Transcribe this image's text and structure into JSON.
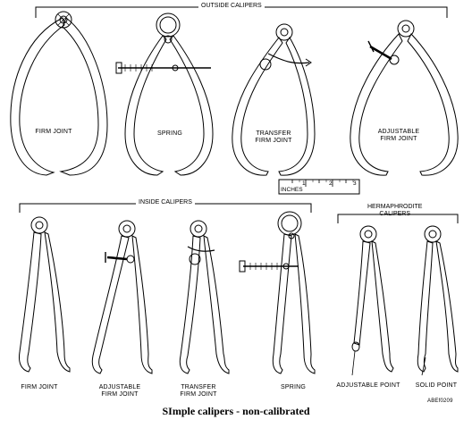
{
  "groups": {
    "outside": "OUTSIDE CALIPERS",
    "inside": "INSIDE CALIPERS",
    "hermaphrodite": "HERMAPHRODITE\nCALIPERS"
  },
  "outside_items": [
    "FIRM JOINT",
    "SPRING",
    "TRANSFER\nFIRM JOINT",
    "ADJUSTABLE\nFIRM JOINT"
  ],
  "inside_items": [
    "FIRM JOINT",
    "ADJUSTABLE\nFIRM JOINT",
    "TRANSFER\nFIRM JOINT",
    "SPRING"
  ],
  "hermaphrodite_items": [
    "ADJUSTABLE POINT",
    "SOLID POINT"
  ],
  "ruler": {
    "unit_label": "INCHES",
    "ticks": [
      "1",
      "2",
      "3"
    ]
  },
  "figure_id": "ABEf0209",
  "caption": "SImple calipers - non-calibrated",
  "colors": {
    "ink": "#000000",
    "background": "#ffffff"
  }
}
